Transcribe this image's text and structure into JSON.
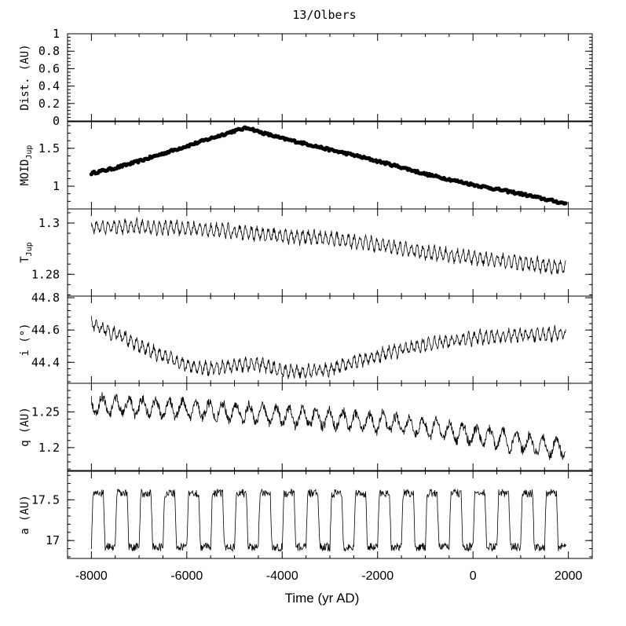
{
  "chart_data": {
    "type": "line",
    "title": "13/Olbers",
    "xlabel": "Time (yr AD)",
    "xlim": [
      -8500,
      2500
    ],
    "xticks": [
      -8000,
      -6000,
      -4000,
      -2000,
      0,
      2000
    ],
    "panels": [
      {
        "id": "dist",
        "ylabel": "Dist. (AU)",
        "ylim": [
          0,
          1
        ],
        "yticks": [
          0,
          0.2,
          0.4,
          0.6,
          0.8,
          1
        ],
        "yticklabels": [
          "0",
          "0.2",
          "0.4",
          "0.6",
          "0.8",
          "1"
        ],
        "style": "none",
        "x": [],
        "y": []
      },
      {
        "id": "moid",
        "ylabel": "MOID",
        "ylabel_sub": "Jup",
        "ylim": [
          0.7,
          1.85
        ],
        "yticks": [
          1,
          1.5
        ],
        "yticklabels": [
          "1",
          "1.5"
        ],
        "style": "scatter",
        "x": [
          -8000,
          -7500,
          -7000,
          -6500,
          -6000,
          -5500,
          -5000,
          -4800,
          -4700,
          -4500,
          -4000,
          -3500,
          -3000,
          -2500,
          -2000,
          -1500,
          -1000,
          -500,
          0,
          500,
          1000,
          1500,
          1950
        ],
        "y": [
          1.17,
          1.24,
          1.33,
          1.43,
          1.53,
          1.63,
          1.73,
          1.76,
          1.77,
          1.72,
          1.63,
          1.56,
          1.48,
          1.41,
          1.33,
          1.25,
          1.16,
          1.09,
          1.02,
          0.96,
          0.9,
          0.83,
          0.77
        ],
        "noise": 0.015
      },
      {
        "id": "tjup",
        "ylabel": "T",
        "ylabel_sub": "Jup",
        "ylim": [
          1.2715,
          1.3055
        ],
        "yticks": [
          1.28,
          1.3
        ],
        "yticklabels": [
          "1.28",
          "1.3"
        ],
        "style": "line",
        "x": [
          -8000,
          -7000,
          -6000,
          -5000,
          -4000,
          -3000,
          -2000,
          -1000,
          0,
          1000,
          1950
        ],
        "y": [
          1.2985,
          1.2985,
          1.298,
          1.2965,
          1.295,
          1.294,
          1.2915,
          1.2885,
          1.2865,
          1.2845,
          1.2825
        ],
        "amp": 0.0028,
        "noise": 0.001,
        "period": 120
      },
      {
        "id": "incl",
        "ylabel": "i (°)",
        "ylim": [
          44.27,
          44.81
        ],
        "yticks": [
          44.4,
          44.6,
          44.8
        ],
        "yticklabels": [
          "44.4",
          "44.6",
          "44.8"
        ],
        "style": "line",
        "x": [
          -8000,
          -7700,
          -7300,
          -7000,
          -6500,
          -6000,
          -5500,
          -5000,
          -4500,
          -4000,
          -3500,
          -3000,
          -2500,
          -2000,
          -1500,
          -1000,
          -500,
          0,
          500,
          1000,
          1500,
          1950
        ],
        "y": [
          44.64,
          44.6,
          44.55,
          44.5,
          44.44,
          44.38,
          44.36,
          44.38,
          44.39,
          44.35,
          44.34,
          44.36,
          44.4,
          44.44,
          44.48,
          44.51,
          44.53,
          44.55,
          44.56,
          44.57,
          44.57,
          44.58
        ],
        "amp": 0.04,
        "noise": 0.018,
        "period": 120
      },
      {
        "id": "q",
        "ylabel": "q (AU)",
        "ylim": [
          1.168,
          1.29
        ],
        "yticks": [
          1.2,
          1.25
        ],
        "yticklabels": [
          "1.2",
          "1.25"
        ],
        "style": "line",
        "x": [
          -8000,
          -7000,
          -6000,
          -5000,
          -4000,
          -3000,
          -2000,
          -1000,
          0,
          1000,
          1500,
          1950
        ],
        "y": [
          1.26,
          1.257,
          1.254,
          1.25,
          1.245,
          1.24,
          1.236,
          1.228,
          1.218,
          1.208,
          1.2,
          1.2
        ],
        "amp": 0.015,
        "noise": 0.006,
        "period": 280
      },
      {
        "id": "a",
        "ylabel": "a (AU)",
        "ylim": [
          16.78,
          17.85
        ],
        "yticks": [
          17,
          17.5
        ],
        "yticklabels": [
          "17",
          "17.5"
        ],
        "style": "square",
        "x": [
          -8000,
          1950
        ],
        "y": [
          17.25,
          17.25
        ],
        "amp": 0.33,
        "noise": 0.05,
        "period": 500
      }
    ]
  }
}
